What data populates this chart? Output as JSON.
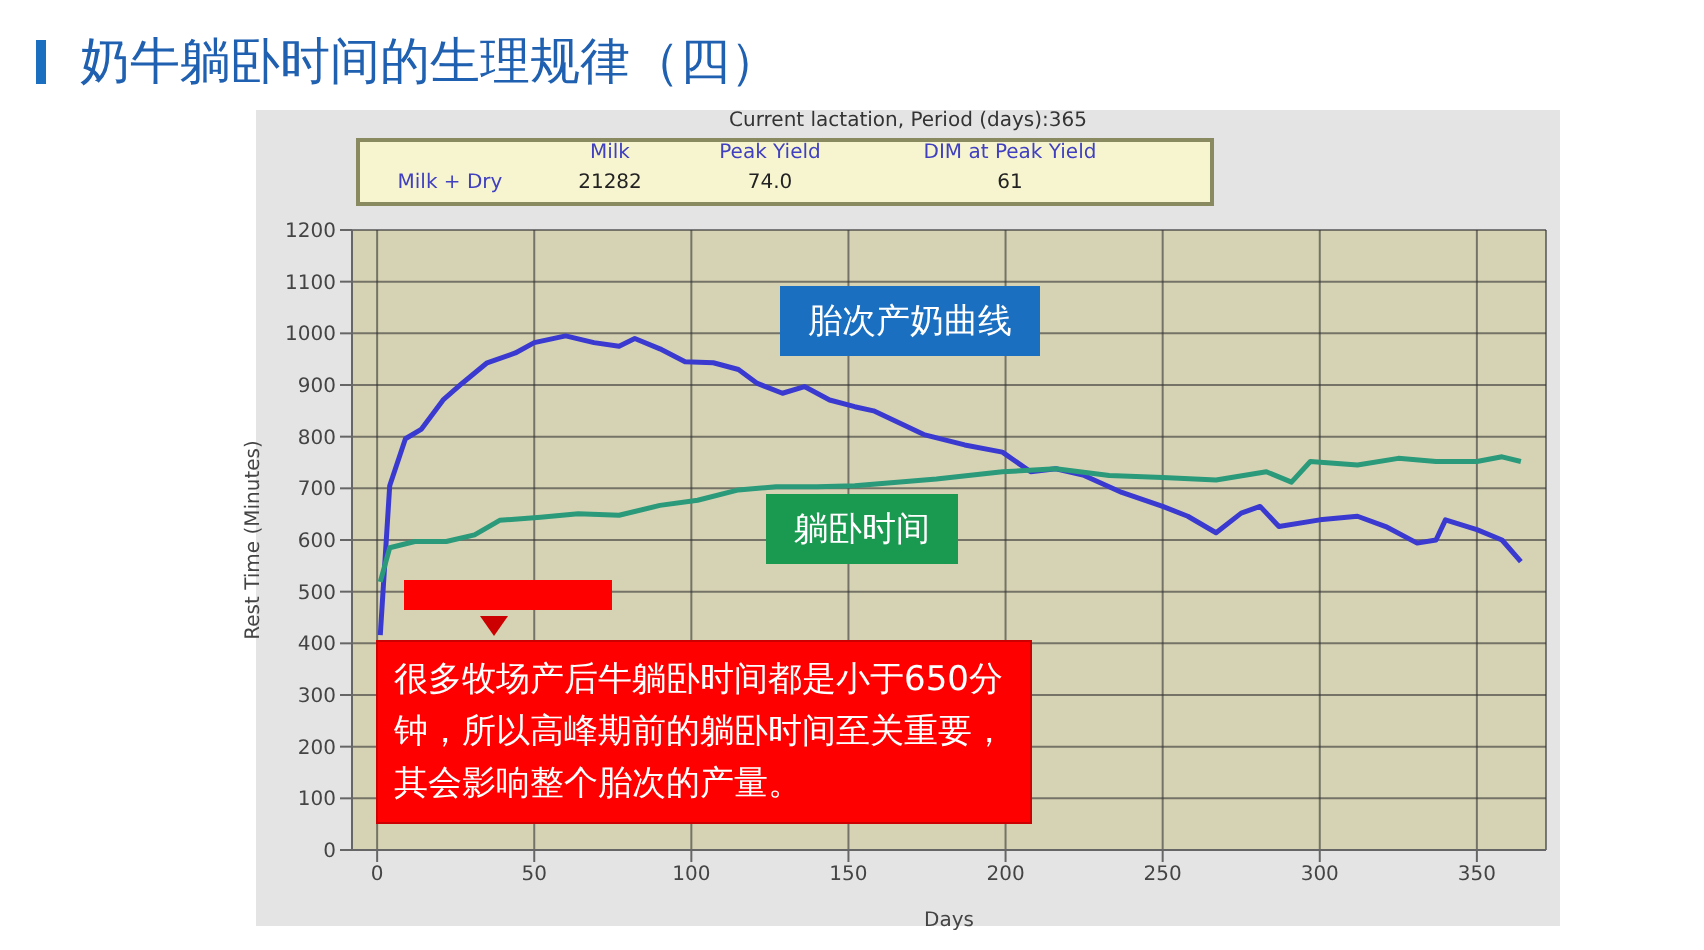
{
  "chart_data": {
    "type": "line",
    "title": "奶牛躺卧时间的生理规律（四）",
    "subtitle": "Current lactation, Period (days):365",
    "xlabel": "Days",
    "ylabel": "Rest Time (Minutes)",
    "xlim": [
      -8,
      372
    ],
    "xticks": [
      0,
      50,
      100,
      150,
      200,
      250,
      300,
      350
    ],
    "ylim": [
      0,
      1200
    ],
    "yticks": [
      0,
      100,
      200,
      300,
      400,
      500,
      600,
      700,
      800,
      900,
      1000,
      1100,
      1200
    ],
    "grid": true,
    "line_style": "solid",
    "series": [
      {
        "name": "胎次产奶曲线",
        "color": "#3a3ad0",
        "x": [
          1,
          4,
          9,
          14,
          21,
          27,
          35,
          44,
          50,
          60,
          69,
          77,
          82,
          90,
          98,
          107,
          115,
          121,
          129,
          136,
          144,
          152,
          158,
          174,
          187,
          199,
          208,
          216,
          225,
          237,
          250,
          258,
          267,
          275,
          281,
          287,
          300,
          312,
          321,
          331,
          337,
          340,
          350,
          358,
          364
        ],
        "values": [
          416,
          705,
          796,
          814,
          871,
          903,
          943,
          962,
          982,
          995,
          982,
          975,
          990,
          970,
          945,
          943,
          930,
          903,
          884,
          897,
          871,
          858,
          850,
          804,
          784,
          770,
          732,
          738,
          725,
          692,
          665,
          646,
          614,
          652,
          665,
          626,
          639,
          646,
          626,
          594,
          600,
          639,
          620,
          600,
          558
        ]
      },
      {
        "name": "躺卧时间",
        "color": "#2a9a7a",
        "x": [
          1,
          4,
          12,
          22,
          31,
          39,
          52,
          64,
          77,
          90,
          102,
          115,
          127,
          140,
          152,
          178,
          199,
          216,
          233,
          250,
          267,
          283,
          291,
          297,
          312,
          325,
          337,
          350,
          358,
          364
        ],
        "values": [
          519,
          585,
          597,
          597,
          610,
          638,
          644,
          651,
          648,
          667,
          677,
          697,
          703,
          703,
          705,
          718,
          732,
          738,
          725,
          721,
          716,
          732,
          712,
          752,
          745,
          758,
          752,
          752,
          761,
          752
        ]
      }
    ],
    "annotations": [
      "Milk",
      "Peak Yield",
      "DIM at Peak Yield",
      "Milk + Dry",
      "21282",
      "74.0",
      "61",
      "很多牧场产后牛躺卧时间都是小于650分钟，所以高峰期前的躺卧时间至关重要，其会影响整个胎次的产量。"
    ]
  }
}
